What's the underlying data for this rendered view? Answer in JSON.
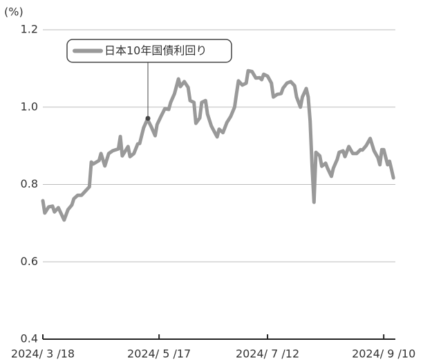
{
  "chart_data": {
    "type": "line",
    "y_unit_label": "(%)",
    "x": [
      "2024-03-18",
      "2024-03-19",
      "2024-03-21",
      "2024-03-23",
      "2024-03-24",
      "2024-03-26",
      "2024-03-29",
      "2024-03-31",
      "2024-04-02",
      "2024-04-03",
      "2024-04-05",
      "2024-04-07",
      "2024-04-09",
      "2024-04-11",
      "2024-04-12",
      "2024-04-13",
      "2024-04-16",
      "2024-04-17",
      "2024-04-19",
      "2024-04-21",
      "2024-04-23",
      "2024-04-26",
      "2024-04-27",
      "2024-04-28",
      "2024-05-01",
      "2024-05-02",
      "2024-05-04",
      "2024-05-06",
      "2024-05-07",
      "2024-05-09",
      "2024-05-11",
      "2024-05-13",
      "2024-05-15",
      "2024-05-16",
      "2024-05-18",
      "2024-05-20",
      "2024-05-22",
      "2024-05-23",
      "2024-05-25",
      "2024-05-27",
      "2024-05-28",
      "2024-05-30",
      "2024-06-01",
      "2024-06-02",
      "2024-06-04",
      "2024-06-05",
      "2024-06-07",
      "2024-06-08",
      "2024-06-10",
      "2024-06-11",
      "2024-06-13",
      "2024-06-15",
      "2024-06-16",
      "2024-06-17",
      "2024-06-19",
      "2024-06-21",
      "2024-06-23",
      "2024-06-25",
      "2024-06-26",
      "2024-06-27",
      "2024-06-29",
      "2024-07-01",
      "2024-07-02",
      "2024-07-04",
      "2024-07-06",
      "2024-07-08",
      "2024-07-09",
      "2024-07-10",
      "2024-07-12",
      "2024-07-14",
      "2024-07-15",
      "2024-07-17",
      "2024-07-19",
      "2024-07-20",
      "2024-07-22",
      "2024-07-24",
      "2024-07-26",
      "2024-07-27",
      "2024-07-29",
      "2024-07-30",
      "2024-08-01",
      "2024-08-02",
      "2024-08-03",
      "2024-08-04",
      "2024-08-05",
      "2024-08-06",
      "2024-08-08",
      "2024-08-09",
      "2024-08-11",
      "2024-08-12",
      "2024-08-14",
      "2024-08-15",
      "2024-08-17",
      "2024-08-18",
      "2024-08-20",
      "2024-08-21",
      "2024-08-23",
      "2024-08-25",
      "2024-08-27",
      "2024-08-29",
      "2024-08-30",
      "2024-09-01",
      "2024-09-03",
      "2024-09-05",
      "2024-09-07",
      "2024-09-08",
      "2024-09-09",
      "2024-09-10",
      "2024-09-12",
      "2024-09-13",
      "2024-09-14",
      "2024-09-15"
    ],
    "series": [
      {
        "name": "日本10年国債利回り",
        "color": "#999999",
        "values": [
          0.758,
          0.726,
          0.742,
          0.744,
          0.729,
          0.74,
          0.708,
          0.735,
          0.747,
          0.763,
          0.772,
          0.772,
          0.783,
          0.794,
          0.858,
          0.853,
          0.862,
          0.88,
          0.848,
          0.88,
          0.887,
          0.892,
          0.924,
          0.874,
          0.898,
          0.872,
          0.88,
          0.905,
          0.906,
          0.946,
          0.969,
          0.949,
          0.926,
          0.955,
          0.976,
          0.996,
          0.994,
          1.012,
          1.035,
          1.073,
          1.053,
          1.066,
          1.051,
          1.017,
          1.012,
          0.958,
          0.972,
          1.012,
          1.017,
          0.982,
          0.951,
          0.932,
          0.923,
          0.943,
          0.934,
          0.96,
          0.976,
          1.0,
          1.035,
          1.068,
          1.057,
          1.062,
          1.094,
          1.092,
          1.075,
          1.076,
          1.071,
          1.085,
          1.08,
          1.062,
          1.026,
          1.033,
          1.035,
          1.049,
          1.062,
          1.066,
          1.055,
          1.026,
          1.0,
          1.026,
          1.048,
          1.026,
          0.964,
          0.847,
          0.754,
          0.883,
          0.874,
          0.847,
          0.855,
          0.842,
          0.821,
          0.842,
          0.865,
          0.883,
          0.887,
          0.872,
          0.898,
          0.88,
          0.88,
          0.89,
          0.889,
          0.901,
          0.919,
          0.887,
          0.869,
          0.851,
          0.89,
          0.89,
          0.851,
          0.86,
          0.839,
          0.817
        ]
      }
    ],
    "xlim": [
      "2024-03-18",
      "2024-09-16"
    ],
    "xticks": [
      {
        "value": "2024-03-18",
        "label": "2024/ 3 /18"
      },
      {
        "value": "2024-05-17",
        "label": "2024/ 5 /17"
      },
      {
        "value": "2024-07-12",
        "label": "2024/ 7 /12"
      },
      {
        "value": "2024-09-10",
        "label": "2024/ 9 /10"
      }
    ],
    "ylim": [
      0.4,
      1.2
    ],
    "yticks": [
      0.4,
      0.6,
      0.8,
      {
        "value": 1,
        "label": "1.0"
      },
      1.2
    ],
    "grid": true
  }
}
